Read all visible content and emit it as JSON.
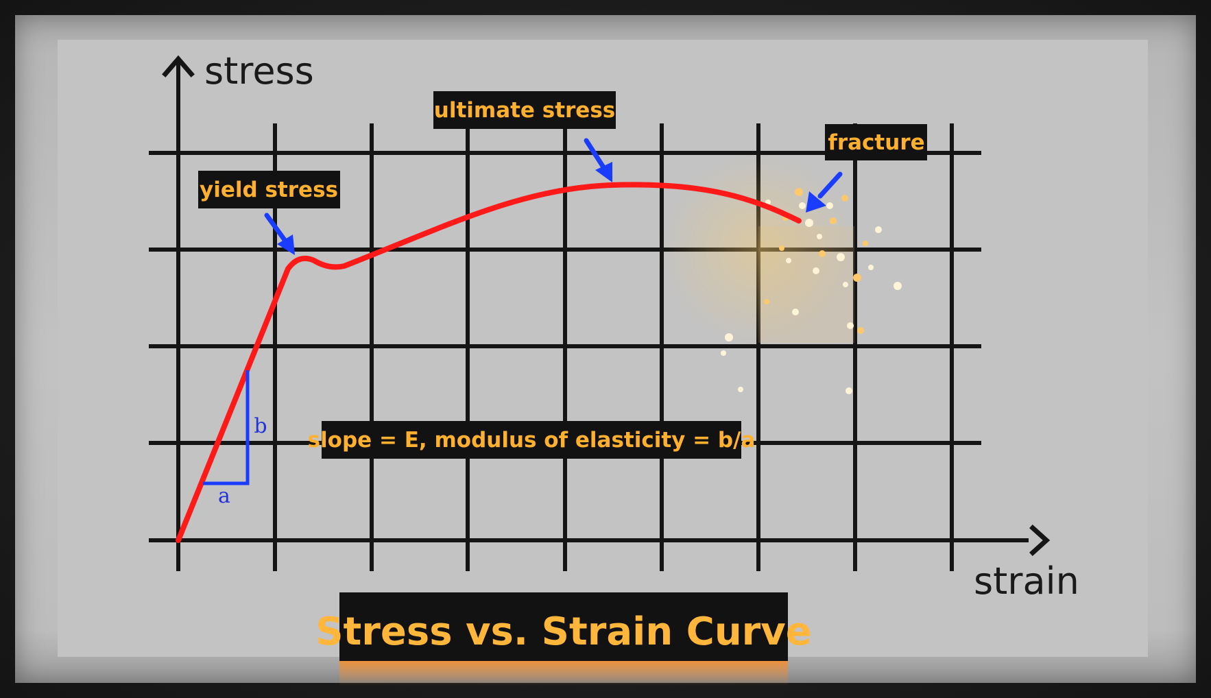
{
  "title": "Stress vs. Strain Curve",
  "axes": {
    "y_label": "stress",
    "x_label": "strain"
  },
  "annotations": {
    "yield": "yield stress",
    "ultimate": "ultimate stress",
    "fracture": "fracture",
    "slope": "slope = E, modulus of elasticity = b/a"
  },
  "triangle": {
    "run_label": "a",
    "rise_label": "b"
  },
  "colors": {
    "curve": "#ff1a1a",
    "arrows": "#1a3cff",
    "label_text": "#ffb02e",
    "label_bg": "#121212",
    "grid": "#151515",
    "triangle": "#1a3cff"
  }
}
